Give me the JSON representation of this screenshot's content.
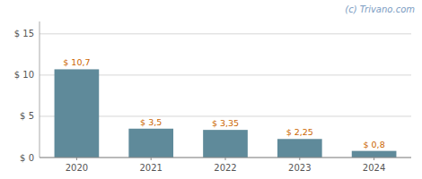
{
  "chart_data": {
    "type": "bar",
    "categories": [
      "2020",
      "2021",
      "2022",
      "2023",
      "2024"
    ],
    "values": [
      10.7,
      3.5,
      3.35,
      2.25,
      0.8
    ],
    "value_labels": [
      "$ 10,7",
      "$ 3,5",
      "$ 3,35",
      "$ 2,25",
      "$ 0,8"
    ],
    "data_labels": true,
    "color": "#5f8a9a",
    "ylim": [
      0,
      16.5
    ],
    "yticks": [
      {
        "value": 0,
        "label": "$ 0"
      },
      {
        "value": 5,
        "label": "$ 5"
      },
      {
        "value": 10,
        "label": "$ 10"
      },
      {
        "value": 15,
        "label": "$ 15"
      }
    ],
    "grid": true,
    "annotations": [
      "(c) Trivano.com"
    ]
  }
}
